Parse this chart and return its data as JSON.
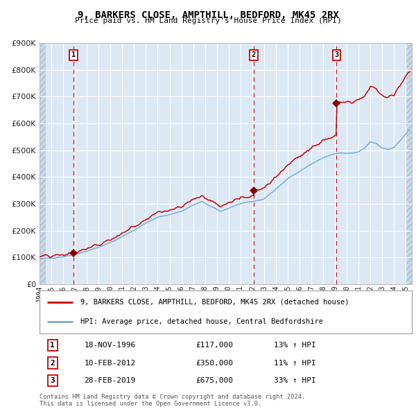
{
  "title": "9, BARKERS CLOSE, AMPTHILL, BEDFORD, MK45 2RX",
  "subtitle": "Price paid vs. HM Land Registry's House Price Index (HPI)",
  "ylim": [
    0,
    900000
  ],
  "yticks": [
    0,
    100000,
    200000,
    300000,
    400000,
    500000,
    600000,
    700000,
    800000,
    900000
  ],
  "ytick_labels": [
    "£0",
    "£100K",
    "£200K",
    "£300K",
    "£400K",
    "£500K",
    "£600K",
    "£700K",
    "£800K",
    "£900K"
  ],
  "xmin": 1994,
  "xmax": 2025.5,
  "background_color": "#dce9f5",
  "hatch_facecolor": "#c8d8ea",
  "grid_color": "#ffffff",
  "red_line_color": "#cc0000",
  "blue_line_color": "#7aadd4",
  "marker_color": "#880000",
  "dashed_line_color": "#dd0000",
  "sale_dates": [
    "1996-11-18",
    "2012-02-10",
    "2019-02-28"
  ],
  "sale_prices": [
    117000,
    350000,
    675000
  ],
  "sale_labels": [
    "1",
    "2",
    "3"
  ],
  "sale_info": [
    {
      "label": "1",
      "date": "18-NOV-1996",
      "price": "£117,000",
      "pct": "13% ↑ HPI"
    },
    {
      "label": "2",
      "date": "10-FEB-2012",
      "price": "£350,000",
      "pct": "11% ↑ HPI"
    },
    {
      "label": "3",
      "date": "28-FEB-2019",
      "price": "£675,000",
      "pct": "33% ↑ HPI"
    }
  ],
  "legend_line1": "9, BARKERS CLOSE, AMPTHILL, BEDFORD, MK45 2RX (detached house)",
  "legend_line2": "HPI: Average price, detached house, Central Bedfordshire",
  "footer1": "Contains HM Land Registry data © Crown copyright and database right 2024.",
  "footer2": "This data is licensed under the Open Government Licence v3.0."
}
